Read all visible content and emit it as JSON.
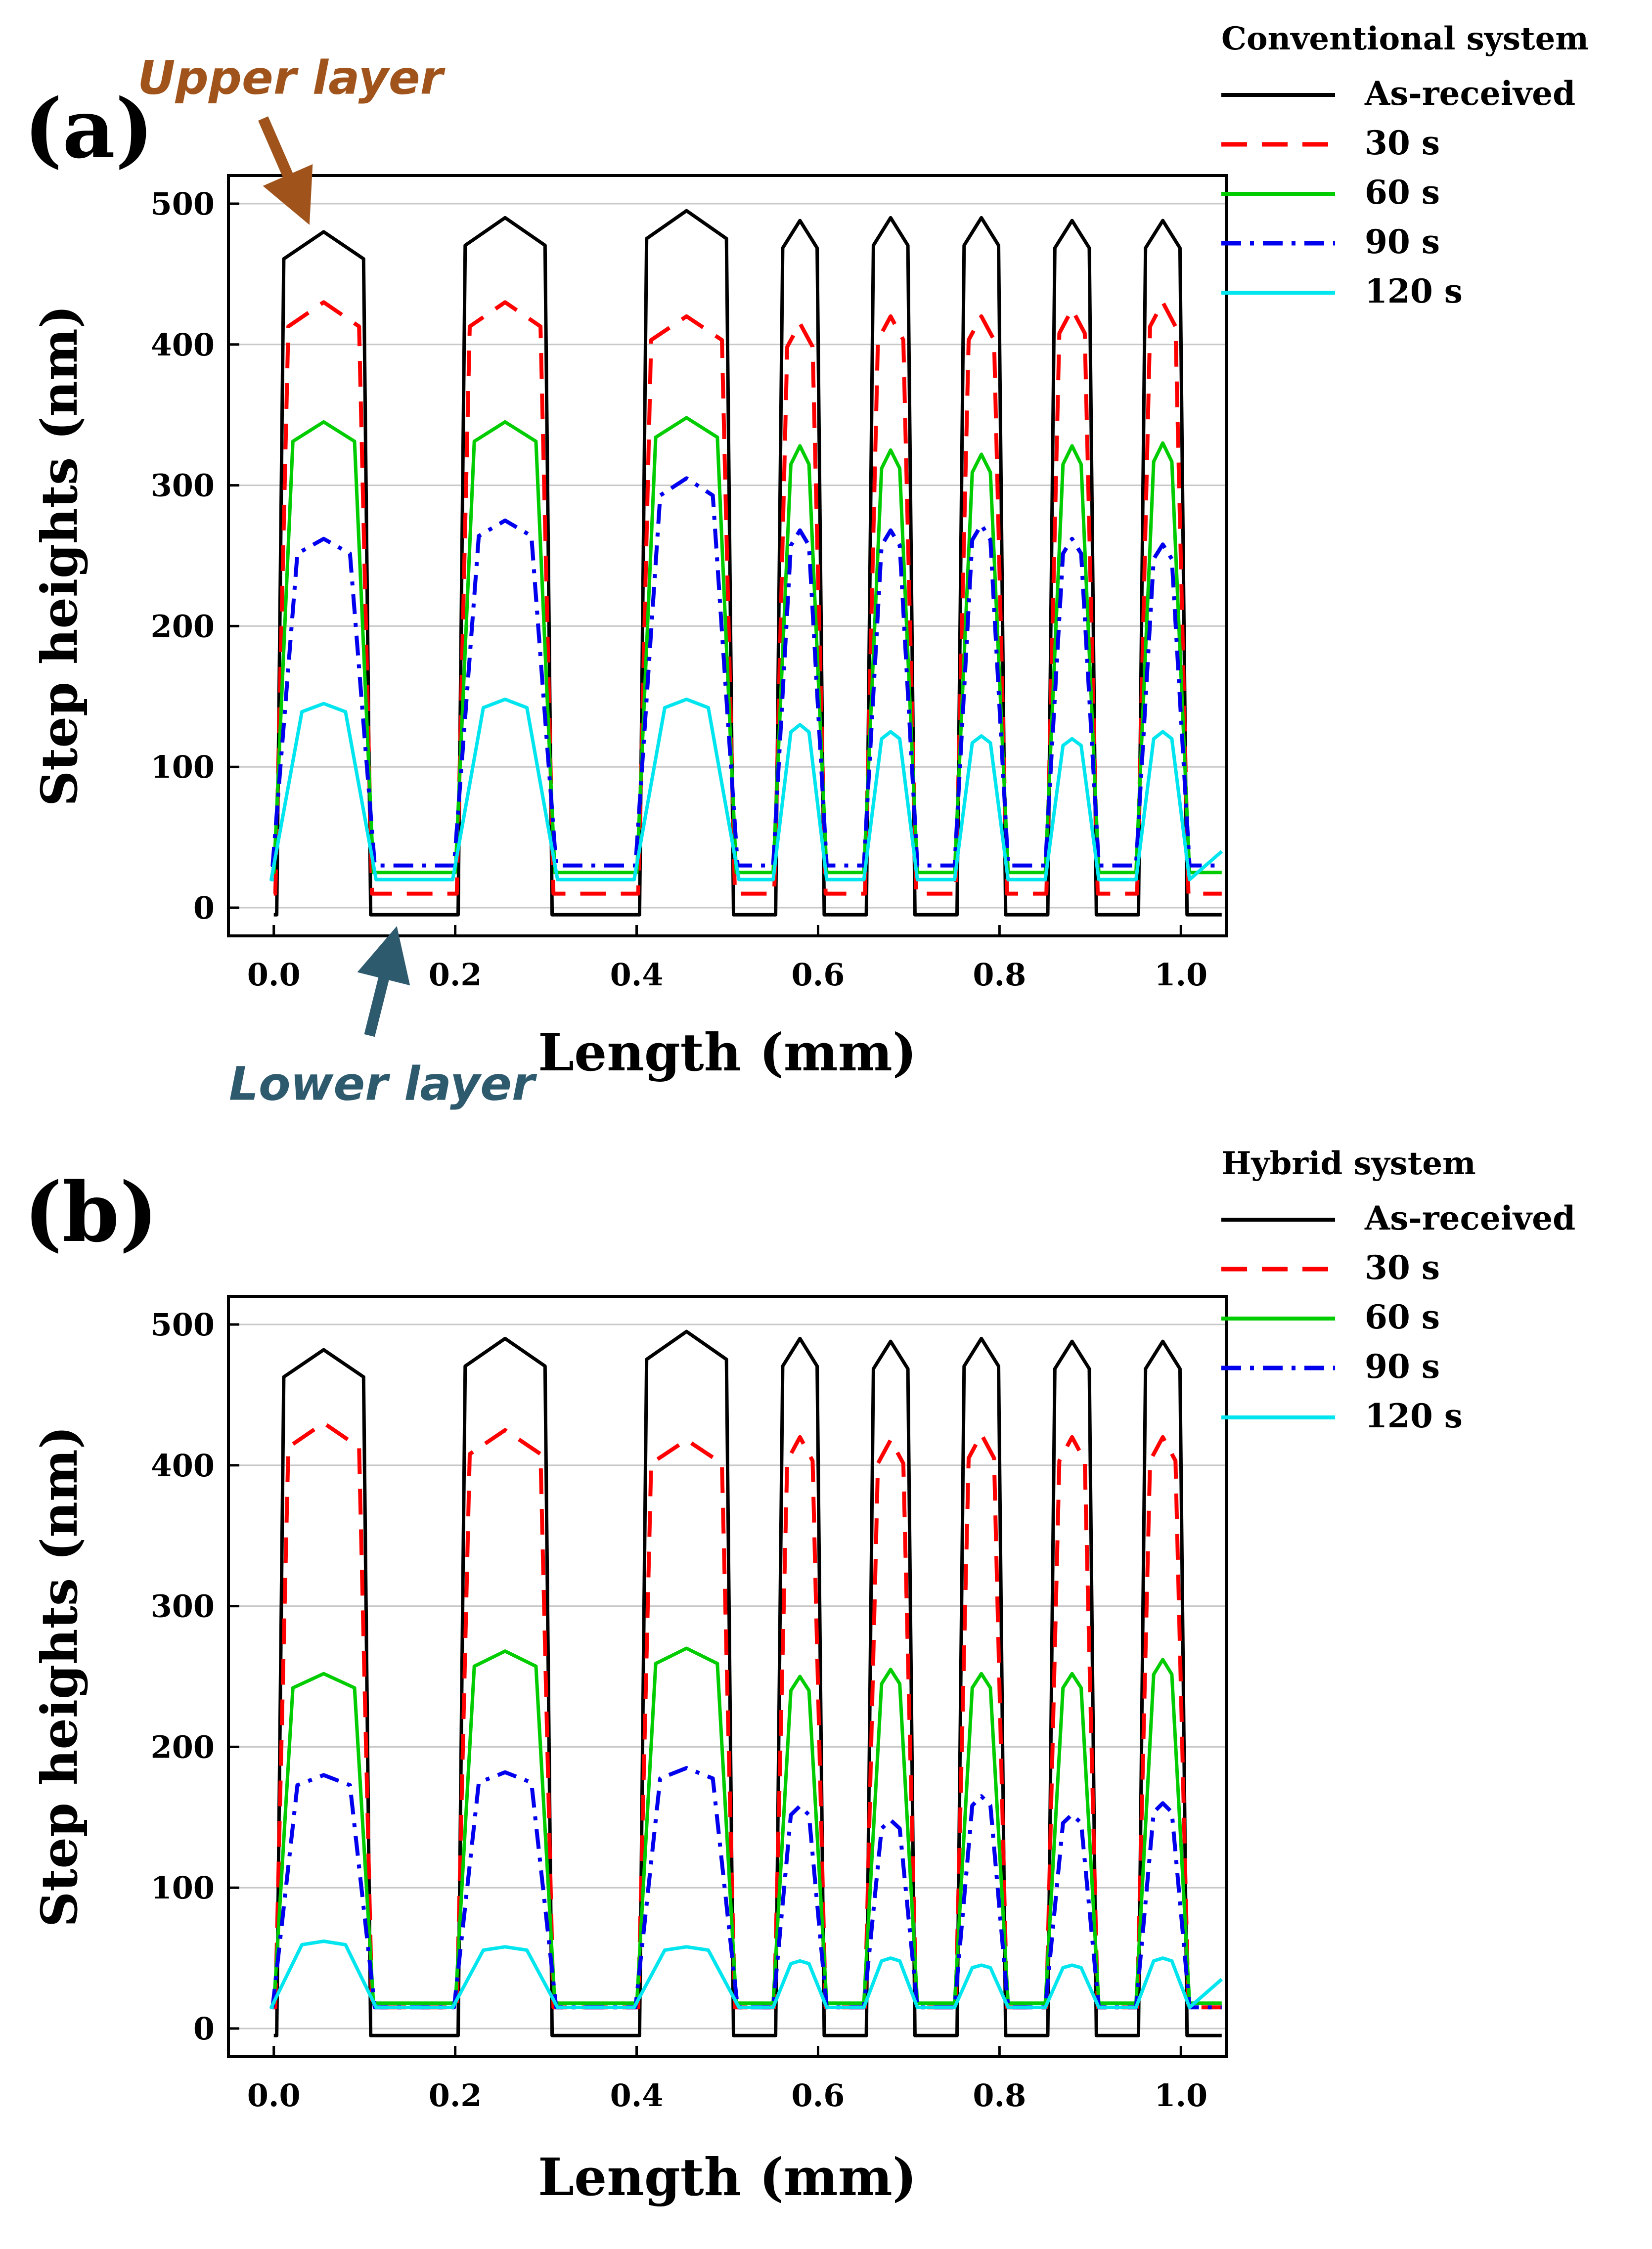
{
  "chart_data": [
    {
      "type": "line",
      "panel_label": "(a)",
      "legend_title": "Conventional system",
      "xlabel": "Length (mm)",
      "ylabel": "Step heights (nm)",
      "xlim": [
        -0.05,
        1.05
      ],
      "ylim": [
        -20,
        520
      ],
      "xticks": [
        "0.0",
        "0.2",
        "0.4",
        "0.6",
        "0.8",
        "1.0"
      ],
      "yticks": [
        "0",
        "100",
        "200",
        "300",
        "400",
        "500"
      ],
      "grid": "horizontal",
      "stripes": [
        [
          0.005,
          0.105
        ],
        [
          0.205,
          0.305
        ],
        [
          0.405,
          0.505
        ],
        [
          0.555,
          0.605
        ],
        [
          0.655,
          0.705
        ],
        [
          0.755,
          0.805
        ],
        [
          0.855,
          0.905
        ],
        [
          0.955,
          1.005
        ]
      ],
      "series": [
        {
          "name": "As-received",
          "color": "#000000",
          "style": "solid",
          "top": [
            480,
            490,
            495,
            488,
            490,
            490,
            488,
            488
          ],
          "bottom": -5
        },
        {
          "name": "30 s",
          "color": "#ff0000",
          "style": "dashed",
          "top": [
            430,
            430,
            420,
            415,
            420,
            420,
            425,
            430
          ],
          "bottom": 10
        },
        {
          "name": "60 s",
          "color": "#00cc00",
          "style": "solid",
          "top": [
            345,
            345,
            348,
            328,
            325,
            322,
            328,
            330
          ],
          "bottom": 25
        },
        {
          "name": "90 s",
          "color": "#0000ee",
          "style": "dashdot",
          "top": [
            262,
            275,
            305,
            268,
            268,
            272,
            262,
            258
          ],
          "bottom": 30
        },
        {
          "name": "120 s",
          "color": "#00e5ee",
          "style": "solid",
          "top": [
            145,
            148,
            148,
            130,
            125,
            122,
            120,
            125
          ],
          "bottom": 20
        }
      ],
      "annotations": [
        {
          "text": "Upper layer",
          "color": "#a0541c",
          "x": 0.04,
          "y": 485
        },
        {
          "text": "Lower layer",
          "color": "#2e5a6e",
          "x": 0.13,
          "y": -10
        }
      ]
    },
    {
      "type": "line",
      "panel_label": "(b)",
      "legend_title": "Hybrid system",
      "xlabel": "Length (mm)",
      "ylabel": "Step heights (nm)",
      "xlim": [
        -0.05,
        1.05
      ],
      "ylim": [
        -20,
        520
      ],
      "xticks": [
        "0.0",
        "0.2",
        "0.4",
        "0.6",
        "0.8",
        "1.0"
      ],
      "yticks": [
        "0",
        "100",
        "200",
        "300",
        "400",
        "500"
      ],
      "grid": "horizontal",
      "stripes": [
        [
          0.005,
          0.105
        ],
        [
          0.205,
          0.305
        ],
        [
          0.405,
          0.505
        ],
        [
          0.555,
          0.605
        ],
        [
          0.655,
          0.705
        ],
        [
          0.755,
          0.805
        ],
        [
          0.855,
          0.905
        ],
        [
          0.955,
          1.005
        ]
      ],
      "series": [
        {
          "name": "As-received",
          "color": "#000000",
          "style": "solid",
          "top": [
            482,
            490,
            495,
            490,
            488,
            490,
            488,
            488
          ],
          "bottom": -5
        },
        {
          "name": "30 s",
          "color": "#ff0000",
          "style": "dashed",
          "top": [
            430,
            425,
            418,
            420,
            418,
            422,
            420,
            420
          ],
          "bottom": 15
        },
        {
          "name": "60 s",
          "color": "#00cc00",
          "style": "solid",
          "top": [
            252,
            268,
            270,
            250,
            255,
            252,
            252,
            262
          ],
          "bottom": 18
        },
        {
          "name": "90 s",
          "color": "#0000ee",
          "style": "dashdot",
          "top": [
            180,
            182,
            185,
            158,
            148,
            165,
            152,
            160
          ],
          "bottom": 15
        },
        {
          "name": "120 s",
          "color": "#00e5ee",
          "style": "solid",
          "top": [
            62,
            58,
            58,
            48,
            50,
            45,
            45,
            50
          ],
          "bottom": 15
        }
      ],
      "annotations": []
    }
  ]
}
